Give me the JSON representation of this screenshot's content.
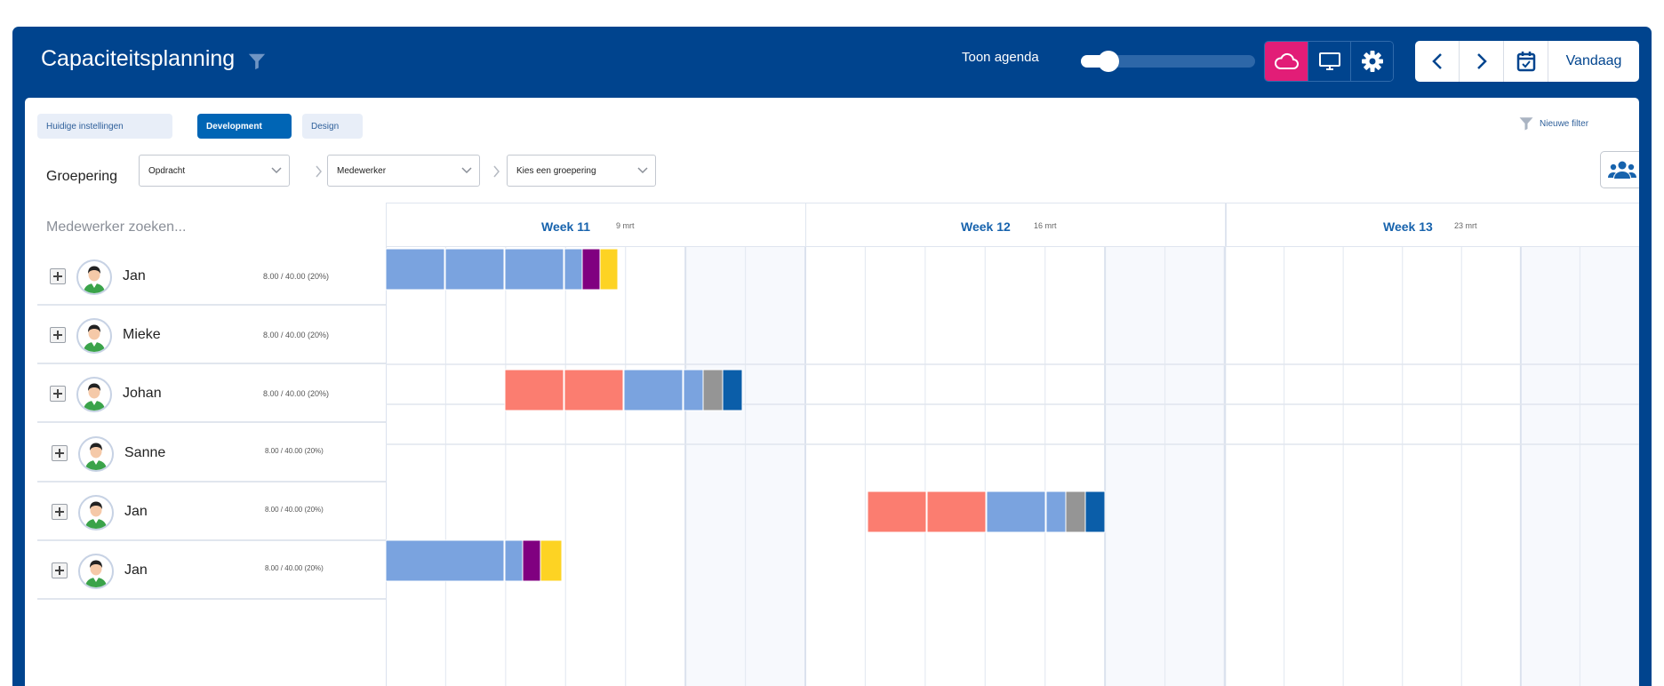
{
  "app": {
    "title": "Capaciteitsplanning",
    "toon_agenda_label": "Toon agenda",
    "agenda_slider_value": 0.16,
    "today_label": "Vandaag",
    "colors": {
      "header_bg": "#00448e",
      "active_pink": "#e21d77",
      "accent_blue": "#0065b5"
    }
  },
  "filters": {
    "tags": [
      {
        "label": "Huidige instellingen",
        "active": false
      },
      {
        "label": "Development",
        "active": true
      },
      {
        "label": "Design",
        "active": false
      }
    ],
    "new_filter_label": "Nieuwe filter"
  },
  "grouping": {
    "label": "Groepering",
    "selects": [
      "Opdracht",
      "Medewerker",
      "Kies een groepering"
    ]
  },
  "search": {
    "placeholder": "Medewerker zoeken..."
  },
  "weeks": [
    {
      "label": "Week 11",
      "date": "9 mrt"
    },
    {
      "label": "Week 12",
      "date": "16 mrt"
    },
    {
      "label": "Week 13",
      "date": "23 mrt"
    }
  ],
  "employees": [
    {
      "name": "Jan",
      "hours": "8.00 / 40.00 (20%)"
    },
    {
      "name": "Mieke",
      "hours": "8.00 / 40.00 (20%)"
    },
    {
      "name": "Johan",
      "hours": "8.00 / 40.00 (20%)"
    },
    {
      "name": "Sanne",
      "hours": "8.00 / 40.00 (20%)"
    },
    {
      "name": "Jan",
      "hours": "8.00 / 40.00 (20%)"
    },
    {
      "name": "Jan",
      "hours": "8.00 / 40.00 (20%)"
    }
  ],
  "bar_colors": {
    "blue": "#7aa3df",
    "salmon": "#fb7d70",
    "purple": "#800080",
    "yellow": "#fdd323",
    "gray": "#959595",
    "darkblue": "#0b5ea9"
  },
  "icons": {
    "title_filter": "filter-icon",
    "cloud": "cloud-icon",
    "monitor": "monitor-icon",
    "gear": "gear-icon",
    "prev": "chevron-left-icon",
    "next": "chevron-right-icon",
    "calendar": "calendar-icon",
    "users": "users-icon",
    "expand": "plus-icon"
  }
}
